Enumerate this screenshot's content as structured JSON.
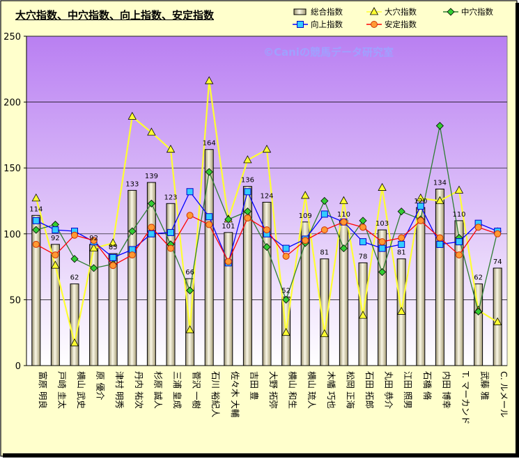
{
  "chart_data": {
    "type": "bar+line",
    "title": "大穴指数、中穴指数、向上指数、安定指数",
    "watermark": "©Caniの競馬データ研究室",
    "ylim": [
      0,
      250
    ],
    "yticks": [
      "0",
      "50",
      "100",
      "150",
      "200",
      "250"
    ],
    "grid": true,
    "legend_position": "top-right",
    "categories": [
      "富原 明良",
      "戸崎 圭太",
      "横山 武史",
      "原 優介",
      "津村 明秀",
      "丹内 祐次",
      "杉原 誠人",
      "三浦 皇成",
      "菅沢 一樹",
      "石川 裕紀人",
      "佐々木 大輔",
      "吉田 豊",
      "大野 拓弥",
      "横山 和生",
      "横山 琉人",
      "木幡 巧也",
      "松岡 正海",
      "石田 拓郎",
      "丸田 恭介",
      "江田 照男",
      "石橋 脩",
      "内田 博幸",
      "T. マーカンド",
      "武藤 雅",
      "C. ルメール"
    ],
    "series": [
      {
        "name": "総合指数",
        "kind": "bar",
        "color": "#e8e2c4",
        "values": [
          114,
          92,
          62,
          92,
          85,
          133,
          139,
          123,
          66,
          164,
          101,
          136,
          124,
          52,
          109,
          81,
          110,
          78,
          103,
          81,
          120,
          134,
          110,
          62,
          74
        ]
      },
      {
        "name": "大穴指数",
        "kind": "line",
        "color": "#ffff33",
        "marker": "triangle",
        "values": [
          127,
          76,
          17,
          89,
          93,
          189,
          177,
          164,
          27,
          216,
          111,
          156,
          164,
          25,
          129,
          24,
          125,
          38,
          135,
          41,
          127,
          125,
          133,
          42,
          33
        ]
      },
      {
        "name": "中穴指数",
        "kind": "line",
        "color": "#2e7d32",
        "marker": "diamond",
        "values": [
          103,
          107,
          81,
          74,
          77,
          102,
          123,
          92,
          57,
          147,
          111,
          117,
          90,
          50,
          93,
          125,
          89,
          110,
          71,
          117,
          111,
          182,
          97,
          41,
          102
        ]
      },
      {
        "name": "向上指数",
        "kind": "line",
        "color": "#0000ff",
        "marker": "square",
        "values": [
          110,
          103,
          102,
          94,
          82,
          88,
          100,
          101,
          132,
          113,
          78,
          132,
          100,
          89,
          96,
          115,
          109,
          94,
          89,
          92,
          121,
          92,
          94,
          108,
          102
        ]
      },
      {
        "name": "安定指数",
        "kind": "line",
        "color": "#ff0000",
        "marker": "circle",
        "values": [
          92,
          84,
          99,
          95,
          76,
          84,
          105,
          89,
          114,
          107,
          79,
          112,
          103,
          83,
          95,
          103,
          109,
          105,
          94,
          97,
          110,
          97,
          84,
          105,
          100
        ]
      }
    ]
  }
}
